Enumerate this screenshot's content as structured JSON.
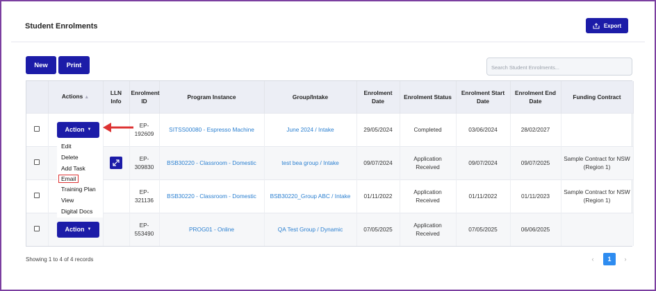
{
  "page": {
    "title": "Student Enrolments",
    "export_label": "Export",
    "new_label": "New",
    "print_label": "Print",
    "search_placeholder": "Search Student Enrolments..."
  },
  "table": {
    "headers": [
      "",
      "Actions",
      "LLN Info",
      "Enrolment ID",
      "Program Instance",
      "Group/Intake",
      "Enrolment Date",
      "Enrolment Status",
      "Enrolment Start Date",
      "Enrolment End Date",
      "Funding Contract"
    ],
    "rows": [
      {
        "enrolment_id": "EP-192609",
        "program": "SITSS00080 - Espresso Machine",
        "group": "June 2024 / Intake",
        "enrolment_date": "29/05/2024",
        "status": "Completed",
        "start_date": "03/06/2024",
        "end_date": "28/02/2027",
        "funding": ""
      },
      {
        "enrolment_id": "EP-309830",
        "program": "BSB30220 - Classroom - Domestic",
        "group": "test bea group / Intake",
        "enrolment_date": "09/07/2024",
        "status": "Application Received",
        "start_date": "09/07/2024",
        "end_date": "09/07/2025",
        "funding": "Sample Contract for NSW (Region 1)"
      },
      {
        "enrolment_id": "EP-321136",
        "program": "BSB30220 - Classroom - Domestic",
        "group": "BSB30220_Group ABC / Intake",
        "enrolment_date": "01/11/2022",
        "status": "Application Received",
        "start_date": "01/11/2022",
        "end_date": "01/11/2023",
        "funding": "Sample Contract for NSW (Region 1)"
      },
      {
        "enrolment_id": "EP-553490",
        "program": "PROG01 - Online",
        "group": "QA Test Group / Dynamic",
        "enrolment_date": "07/05/2025",
        "status": "Application Received",
        "start_date": "07/05/2025",
        "end_date": "06/06/2025",
        "funding": ""
      }
    ],
    "action_label": "Action"
  },
  "action_menu": {
    "items": [
      "Edit",
      "Delete",
      "Add Task",
      "Email",
      "Training Plan",
      "View",
      "Digital Docs"
    ],
    "highlighted": "Email"
  },
  "footer": {
    "records_text": "Showing 1 to 4 of 4 records",
    "current_page": "1"
  },
  "colors": {
    "primary": "#1c1ca8",
    "link": "#2a7fd0",
    "frame": "#7b3fa0",
    "callout": "#d33"
  }
}
